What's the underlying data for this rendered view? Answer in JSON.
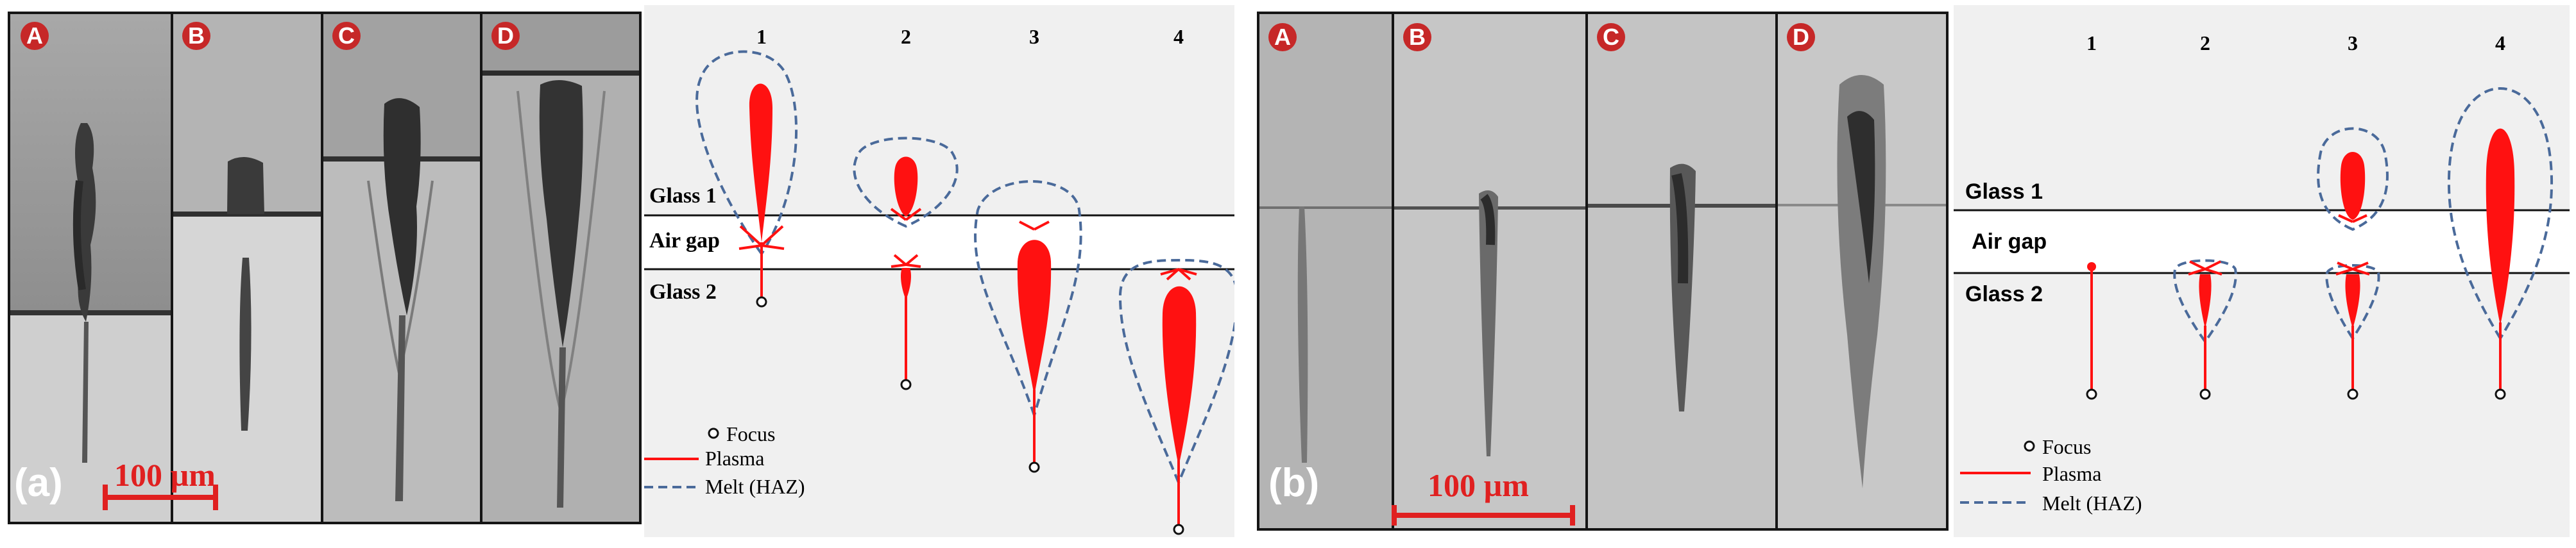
{
  "colors": {
    "plasma": "#ff1111",
    "melt": "#4a6a9a",
    "badge": "#c62828",
    "scalebar": "#e02020"
  },
  "panel_a": {
    "label": "(a)",
    "micrographs": [
      "A",
      "B",
      "C",
      "D"
    ],
    "scale_bar": "100 µm",
    "layers": {
      "top": "Glass 1",
      "gap": "Air gap",
      "bottom": "Glass 2"
    },
    "columns": [
      "1",
      "2",
      "3",
      "4"
    ],
    "legend": {
      "focus": "Focus",
      "plasma": "Plasma",
      "melt": "Melt (HAZ)"
    }
  },
  "panel_b": {
    "label": "(b)",
    "micrographs": [
      "A",
      "B",
      "C",
      "D"
    ],
    "scale_bar": "100 µm",
    "layers": {
      "top": "Glass 1",
      "gap": "Air gap",
      "bottom": "Glass 2"
    },
    "columns": [
      "1",
      "2",
      "3",
      "4"
    ],
    "legend": {
      "focus": "Focus",
      "plasma": "Plasma",
      "melt": "Melt (HAZ)"
    }
  }
}
